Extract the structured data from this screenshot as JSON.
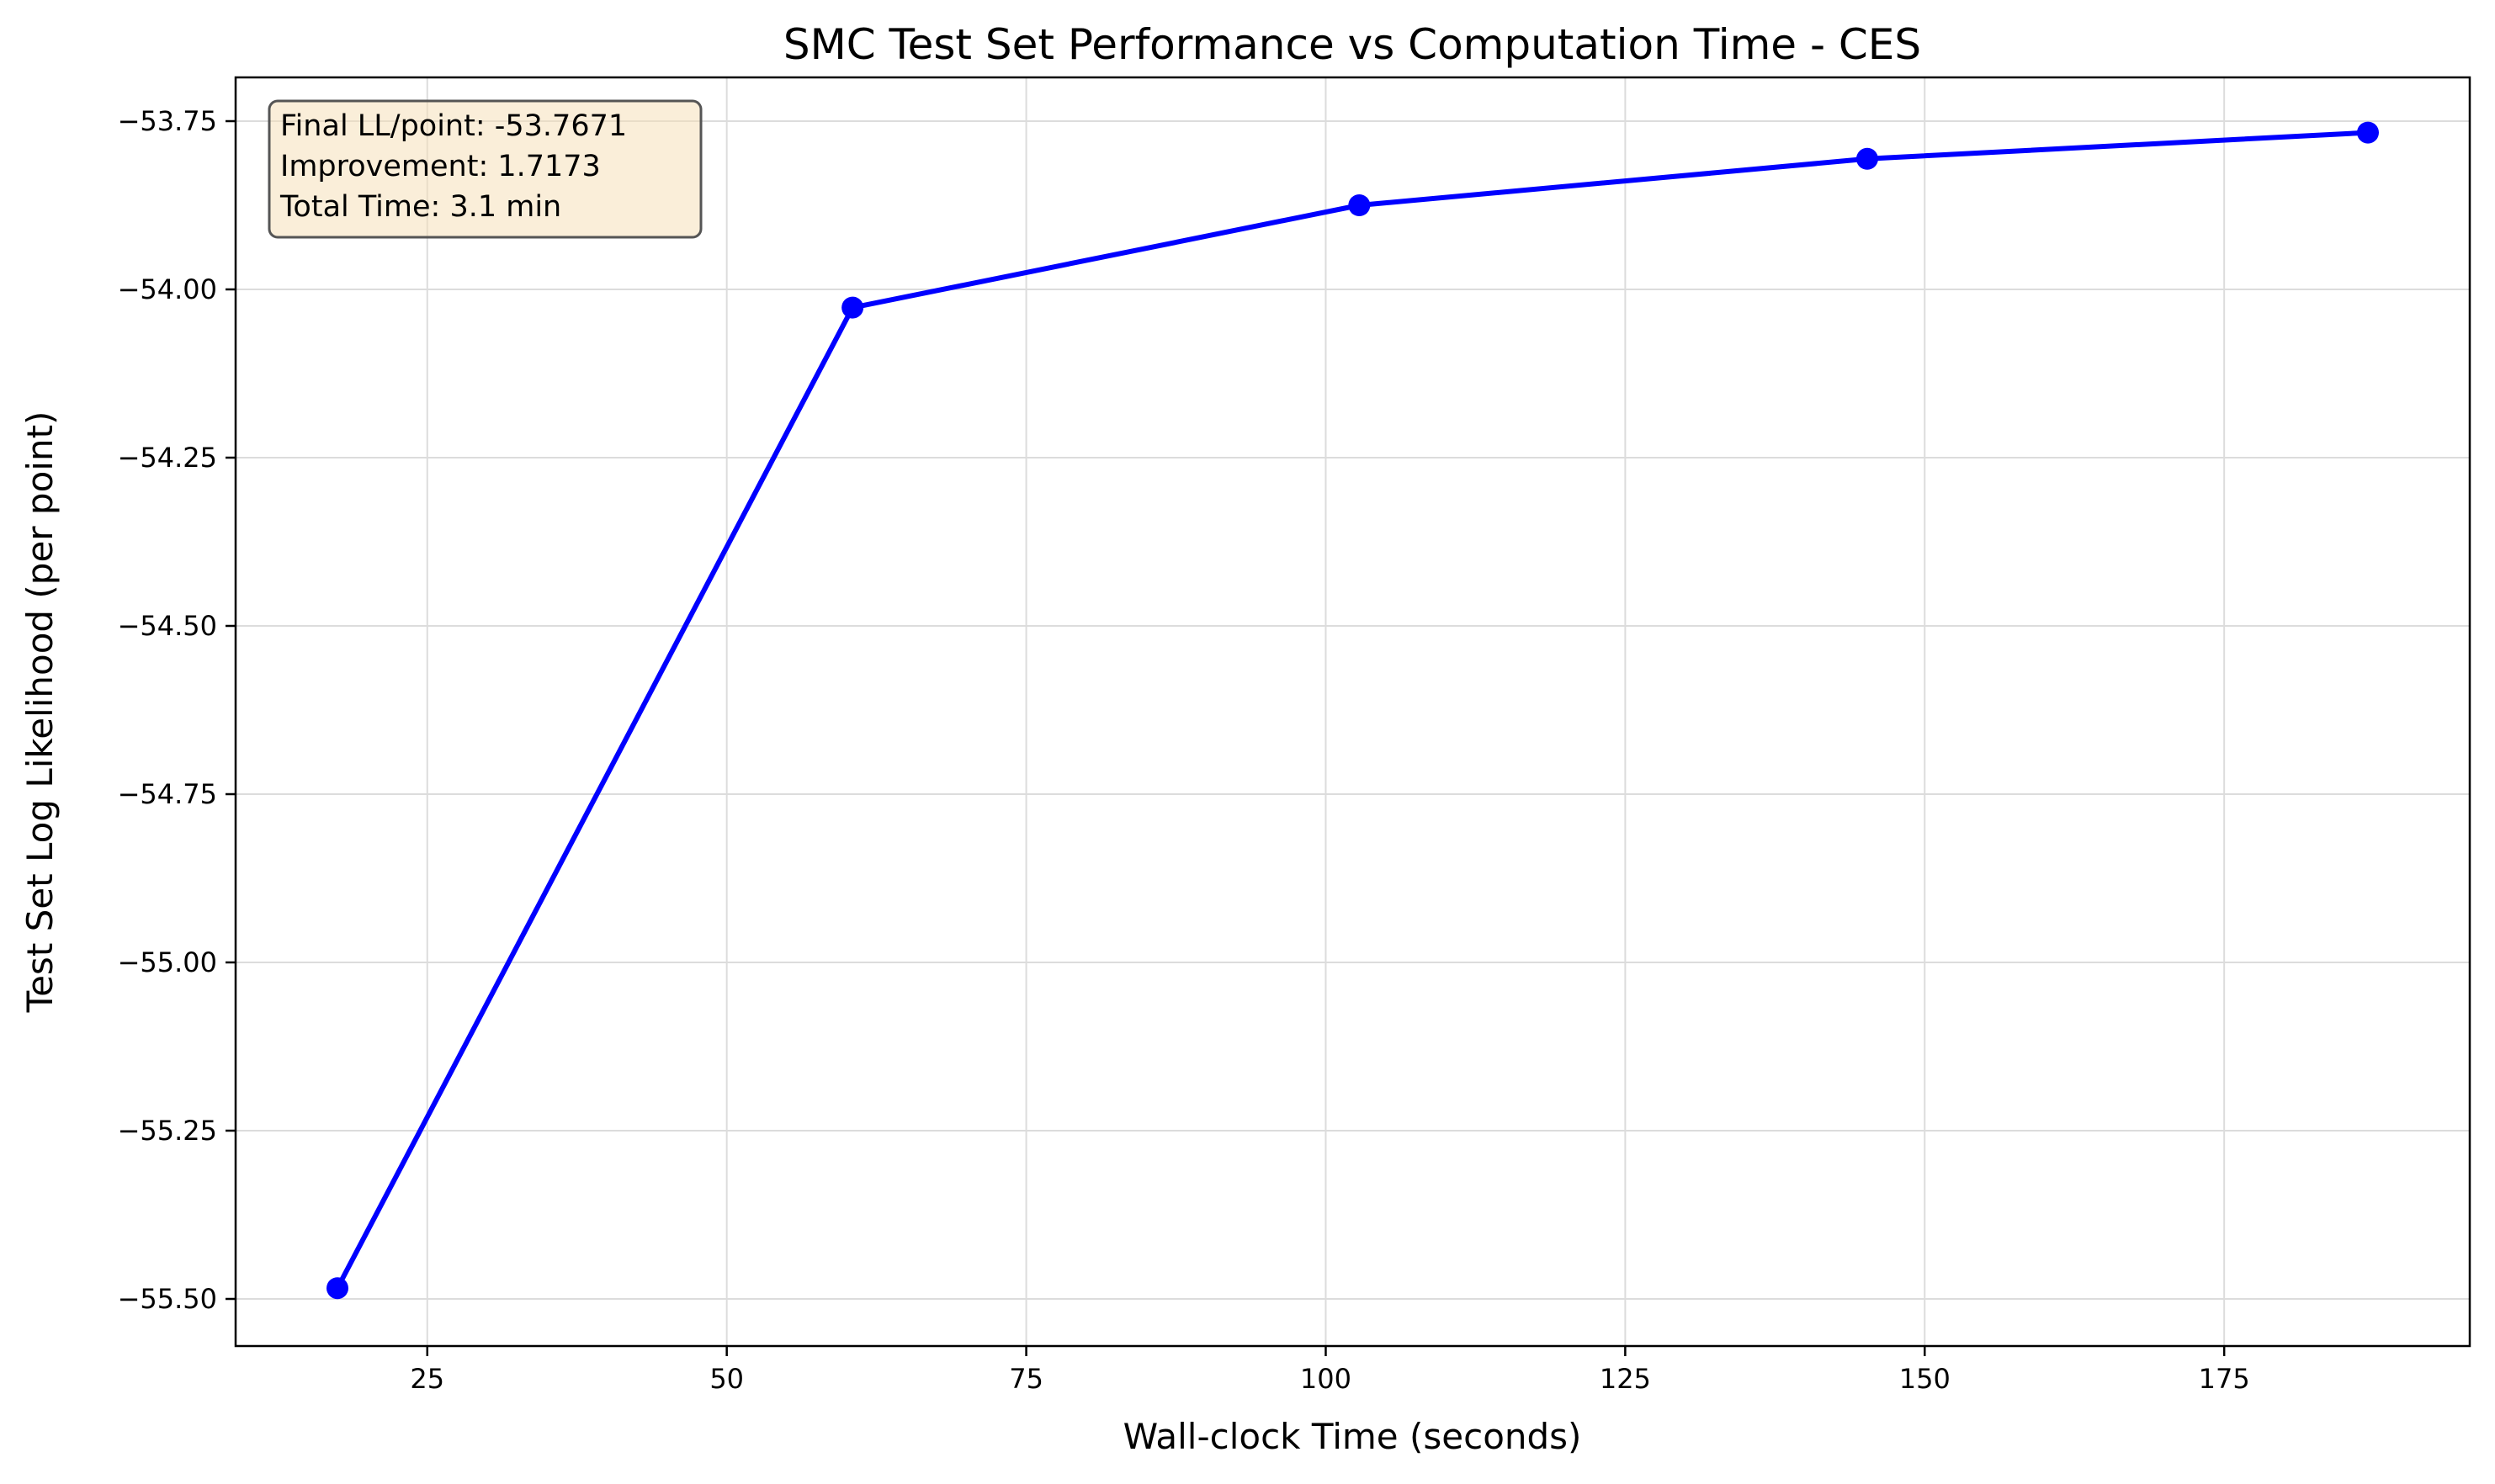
{
  "chart_data": {
    "type": "line",
    "title": "SMC Test Set Performance vs Computation Time - CES",
    "xlabel": "Wall-clock Time (seconds)",
    "ylabel": "Test Set Log Likelihood (per point)",
    "xlim": [
      9.0,
      195.5
    ],
    "ylim": [
      -55.57,
      -53.685
    ],
    "grid": true,
    "x_ticks": [
      25,
      50,
      75,
      100,
      125,
      150,
      175
    ],
    "x_tick_labels": [
      "25",
      "50",
      "75",
      "100",
      "125",
      "150",
      "175"
    ],
    "y_ticks": [
      -53.75,
      -54.0,
      -54.25,
      -54.5,
      -54.75,
      -55.0,
      -55.25,
      -55.5
    ],
    "y_tick_labels": [
      "−53.75",
      "−54.00",
      "−54.25",
      "−54.50",
      "−54.75",
      "−55.00",
      "−55.25",
      "−55.50"
    ],
    "series": [
      {
        "color": "#0000ff",
        "marker": "circle",
        "x": [
          17.5,
          60.5,
          102.8,
          145.2,
          187.0
        ],
        "y": [
          -55.484,
          -54.027,
          -53.875,
          -53.806,
          -53.767
        ]
      }
    ],
    "annotation": {
      "lines": [
        "Final LL/point: -53.7671",
        "Improvement: 1.7173",
        "Total Time: 3.1 min"
      ],
      "placement": "top-left",
      "background": "#f5deb3",
      "border": "#555555"
    }
  }
}
